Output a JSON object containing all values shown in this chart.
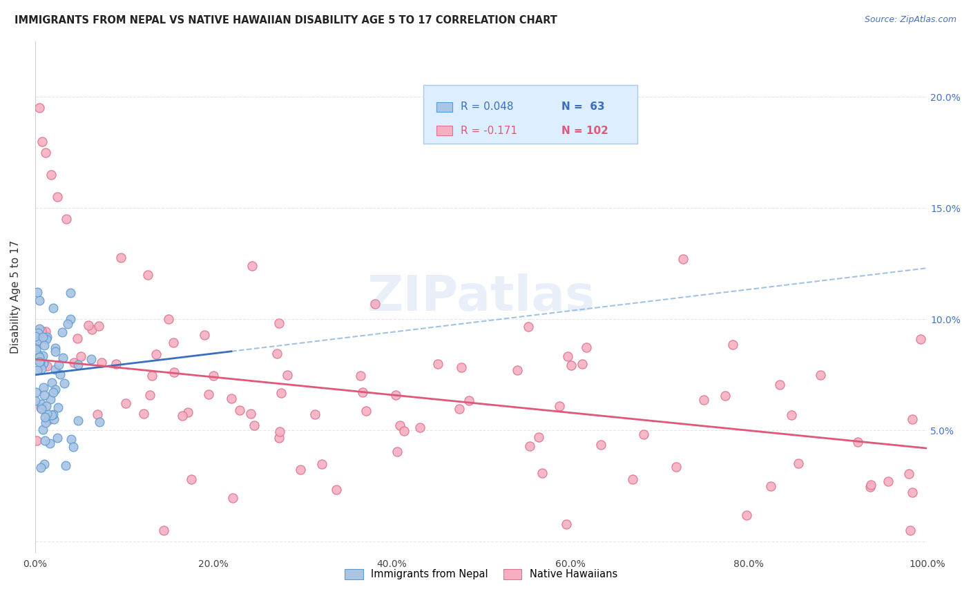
{
  "title": "IMMIGRANTS FROM NEPAL VS NATIVE HAWAIIAN DISABILITY AGE 5 TO 17 CORRELATION CHART",
  "source": "Source: ZipAtlas.com",
  "ylabel": "Disability Age 5 to 17",
  "nepal_R": 0.048,
  "nepal_N": 63,
  "hawaii_R": -0.171,
  "hawaii_N": 102,
  "nepal_color": "#aac4e4",
  "hawaii_color": "#f5afc0",
  "nepal_edge_color": "#5b9bd5",
  "hawaii_edge_color": "#e07090",
  "trend_nepal_color": "#3a6fbf",
  "trend_hawaii_color": "#e05878",
  "trend_nepal_dash_color": "#90b8e0",
  "watermark_color": "#c8d8f0",
  "background_color": "#ffffff",
  "legend_box_color": "#ddeeff",
  "legend_border_color": "#aac8e8",
  "nepal_label": "Immigrants from Nepal",
  "hawaii_label": "Native Hawaiians",
  "nepal_text_color": "#3a6fbf",
  "hawaii_text_color": "#e05878",
  "grid_color": "#dde4ee",
  "title_color": "#222222",
  "source_color": "#4472c4",
  "right_axis_color": "#4472c4",
  "nepal_seed": 7,
  "hawaii_seed": 13
}
